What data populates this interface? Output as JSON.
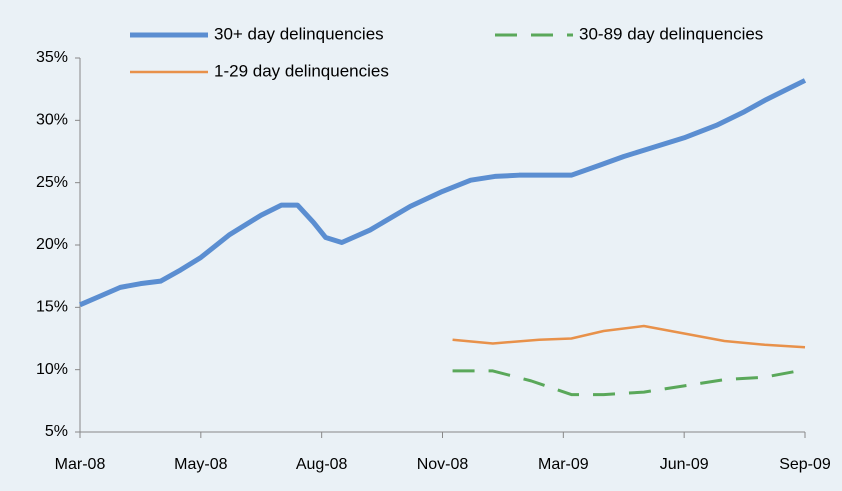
{
  "chart_data": {
    "type": "line",
    "xlim": [
      0,
      18
    ],
    "xticks": [
      {
        "value": 0,
        "label": "Mar-08"
      },
      {
        "value": 3,
        "label": "May-08"
      },
      {
        "value": 6,
        "label": "Aug-08"
      },
      {
        "value": 9,
        "label": "Nov-08"
      },
      {
        "value": 12,
        "label": "Mar-09"
      },
      {
        "value": 15,
        "label": "Jun-09"
      },
      {
        "value": 18,
        "label": "Sep-09"
      }
    ],
    "ylim": [
      5,
      35
    ],
    "yticks": [
      {
        "value": 5,
        "label": "5%"
      },
      {
        "value": 10,
        "label": "10%"
      },
      {
        "value": 15,
        "label": "15%"
      },
      {
        "value": 20,
        "label": "20%"
      },
      {
        "value": 25,
        "label": "25%"
      },
      {
        "value": 30,
        "label": "30%"
      },
      {
        "value": 35,
        "label": "35%"
      }
    ],
    "series": [
      {
        "name": "30+ day delinquencies",
        "color": "#5b8ed1",
        "dash": false,
        "x": [
          0,
          0.5,
          1,
          1.5,
          2,
          2.5,
          3,
          3.7,
          4.5,
          5,
          5.4,
          5.8,
          6.1,
          6.5,
          7.2,
          8.2,
          9,
          9.7,
          10.3,
          10.9,
          12.2,
          12.9,
          13.5,
          14.2,
          15,
          15.8,
          16.5,
          17,
          17.5,
          18
        ],
        "values": [
          15.2,
          15.9,
          16.6,
          16.9,
          17.1,
          18.0,
          19.0,
          20.8,
          22.4,
          23.2,
          23.2,
          21.8,
          20.6,
          20.2,
          21.2,
          23.1,
          24.3,
          25.2,
          25.5,
          25.6,
          25.6,
          26.4,
          27.1,
          27.8,
          28.6,
          29.6,
          30.7,
          31.6,
          32.4,
          33.2
        ]
      },
      {
        "name": "30-89 day delinquencies",
        "color": "#5aa85a",
        "dash": true,
        "x": [
          9.25,
          10.25,
          11.2,
          12.2,
          13,
          14,
          15,
          16,
          17,
          18
        ],
        "values": [
          9.9,
          9.9,
          9.1,
          8.0,
          8.0,
          8.2,
          8.7,
          9.2,
          9.4,
          10.0
        ]
      },
      {
        "name": "1-29 day delinquencies",
        "color": "#e8914a",
        "dash": false,
        "x": [
          9.25,
          10.25,
          11.4,
          12.2,
          13,
          14,
          15,
          16,
          17,
          18
        ],
        "values": [
          12.4,
          12.1,
          12.4,
          12.5,
          13.1,
          13.5,
          12.9,
          12.3,
          12.0,
          11.8
        ]
      }
    ]
  }
}
